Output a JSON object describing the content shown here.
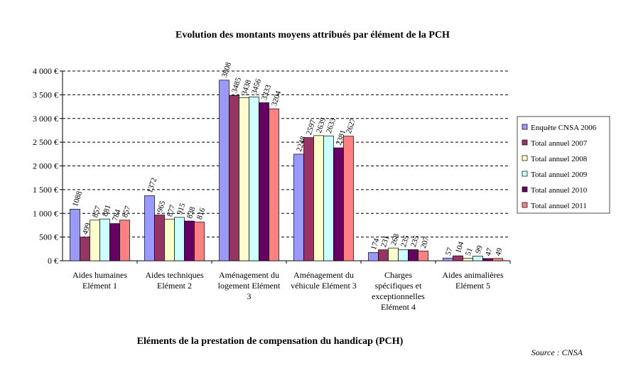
{
  "chart_data": {
    "type": "bar",
    "title": "Evolution des montants moyens attribués par élément de la PCH",
    "x_label": "Eléments de la prestation de compensation du handicap (PCH)",
    "source": "Source : CNSA",
    "categories": [
      "Aides humaines Elément 1",
      "Aides techniques Elément 2",
      "Aménagement du logement Elément 3",
      "Aménagement du véhicule Elément 3",
      "Charges spécifiques et exceptionnelles Elément 4",
      "Aides animalières Elément 5"
    ],
    "series": [
      {
        "name": "Enquête CNSA 2006",
        "color": "#9999ff",
        "values": [
          1088,
          1372,
          3808,
          2248,
          174,
          57
        ]
      },
      {
        "name": "Total annuel 2007",
        "color": "#993366",
        "values": [
          499,
          965,
          3485,
          2597,
          231,
          104
        ]
      },
      {
        "name": "Total annuel 2008",
        "color": "#ffffcc",
        "values": [
          857,
          877,
          3438,
          2639,
          268,
          51
        ]
      },
      {
        "name": "Total annuel 2009",
        "color": "#ccffff",
        "values": [
          881,
          915,
          3456,
          2633,
          235,
          99
        ]
      },
      {
        "name": "Total annuel 2010",
        "color": "#660066",
        "values": [
          784,
          838,
          3333,
          2381,
          235,
          47
        ]
      },
      {
        "name": "Total annuel 2011",
        "color": "#ff8080",
        "values": [
          857,
          816,
          3204,
          2627,
          207,
          49
        ]
      }
    ],
    "ylim": [
      0,
      4000
    ],
    "yticks": [
      {
        "value": 0,
        "label": "0 €"
      },
      {
        "value": 500,
        "label": "500 €"
      },
      {
        "value": 1000,
        "label": "1 000 €"
      },
      {
        "value": 1500,
        "label": "1 500 €"
      },
      {
        "value": 2000,
        "label": "2 000 €"
      },
      {
        "value": 2500,
        "label": "2 500 €"
      },
      {
        "value": 3000,
        "label": "3 000 €"
      },
      {
        "value": 3500,
        "label": "3 500 €"
      },
      {
        "value": 4000,
        "label": "4 000 €"
      }
    ],
    "grid": true,
    "legend": "right"
  }
}
